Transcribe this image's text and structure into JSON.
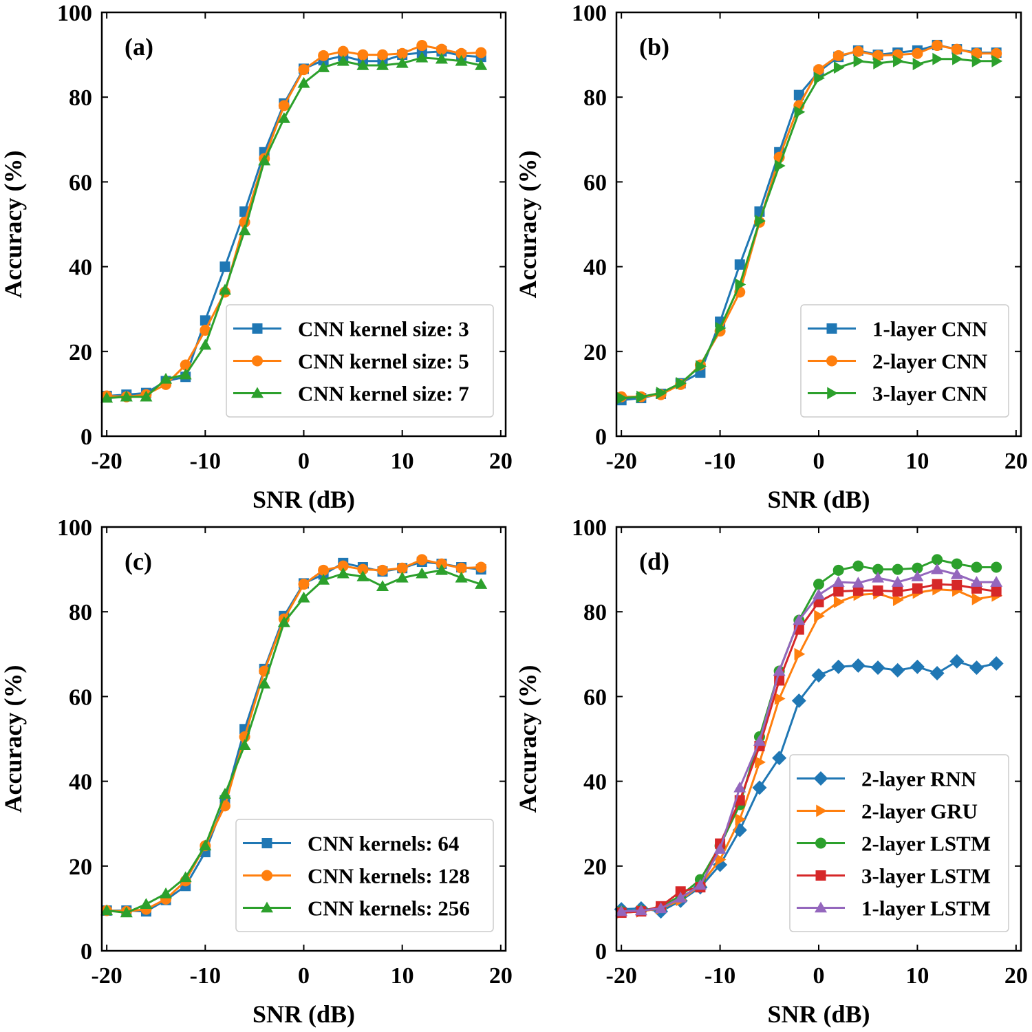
{
  "chart_data": [
    {
      "type": "line",
      "panel_label": "(a)",
      "xlabel": "SNR (dB)",
      "ylabel": "Accuracy (%)",
      "xlim": [
        -20.5,
        20.5
      ],
      "ylim": [
        0,
        100
      ],
      "xticks": [
        -20,
        -10,
        0,
        10,
        20
      ],
      "xtick_labels": [
        "-20",
        "-10",
        "0",
        "10",
        "20"
      ],
      "yticks": [
        0,
        20,
        40,
        60,
        80,
        100
      ],
      "ytick_labels": [
        "0",
        "20",
        "40",
        "60",
        "80",
        "100"
      ],
      "legend_position": "lower-right",
      "x": [
        -20,
        -18,
        -16,
        -14,
        -12,
        -10,
        -8,
        -6,
        -4,
        -2,
        0,
        2,
        4,
        6,
        8,
        10,
        12,
        14,
        16,
        18
      ],
      "series": [
        {
          "name": "CNN kernel size: 3",
          "color": "#1f77b4",
          "marker": "square",
          "values": [
            9.5,
            9.8,
            10.2,
            13.0,
            14.0,
            27.3,
            40.0,
            53.0,
            67.0,
            78.5,
            86.7,
            88.7,
            89.7,
            88.5,
            88.5,
            90.0,
            90.5,
            90.8,
            89.8,
            89.5
          ]
        },
        {
          "name": "CNN kernel size: 5",
          "color": "#ff7f0e",
          "marker": "circle",
          "values": [
            9.5,
            9.3,
            9.8,
            12.2,
            16.8,
            25.0,
            34.0,
            50.5,
            65.5,
            78.0,
            86.5,
            89.8,
            90.8,
            90.0,
            90.0,
            90.3,
            92.2,
            91.3,
            90.3,
            90.5
          ]
        },
        {
          "name": "CNN kernel size: 7",
          "color": "#2ca02c",
          "marker": "triangle-up",
          "values": [
            9.0,
            9.3,
            9.3,
            13.5,
            14.5,
            21.5,
            34.5,
            48.5,
            65.0,
            75.0,
            83.3,
            87.0,
            88.5,
            87.5,
            87.5,
            88.0,
            89.3,
            89.0,
            88.5,
            87.5
          ]
        }
      ]
    },
    {
      "type": "line",
      "panel_label": "(b)",
      "xlabel": "SNR (dB)",
      "ylabel": "Accuracy (%)",
      "xlim": [
        -20.5,
        20.5
      ],
      "ylim": [
        0,
        100
      ],
      "xticks": [
        -20,
        -10,
        0,
        10,
        20
      ],
      "xtick_labels": [
        "-20",
        "-10",
        "0",
        "10",
        "20"
      ],
      "yticks": [
        0,
        20,
        40,
        60,
        80,
        100
      ],
      "ytick_labels": [
        "0",
        "20",
        "40",
        "60",
        "80",
        "100"
      ],
      "legend_position": "lower-right",
      "x": [
        -20,
        -18,
        -16,
        -14,
        -12,
        -10,
        -8,
        -6,
        -4,
        -2,
        0,
        2,
        4,
        6,
        8,
        10,
        12,
        14,
        16,
        18
      ],
      "series": [
        {
          "name": "1-layer CNN",
          "color": "#1f77b4",
          "marker": "square",
          "values": [
            8.5,
            9.0,
            10.0,
            12.5,
            15.0,
            27.0,
            40.5,
            53.0,
            67.0,
            80.5,
            86.0,
            89.5,
            91.0,
            90.0,
            90.5,
            91.0,
            92.3,
            91.3,
            90.5,
            90.5
          ]
        },
        {
          "name": "2-layer CNN",
          "color": "#ff7f0e",
          "marker": "circle",
          "values": [
            9.3,
            9.3,
            9.8,
            12.2,
            16.8,
            24.8,
            34.0,
            50.5,
            65.8,
            78.0,
            86.5,
            89.8,
            90.8,
            89.8,
            90.0,
            90.3,
            92.2,
            91.3,
            90.3,
            90.3
          ]
        },
        {
          "name": "3-layer CNN",
          "color": "#2ca02c",
          "marker": "triangle-right",
          "values": [
            9.0,
            9.3,
            10.2,
            12.5,
            16.5,
            25.5,
            35.8,
            50.8,
            63.8,
            76.5,
            84.5,
            87.0,
            88.5,
            88.0,
            88.5,
            87.8,
            89.0,
            89.0,
            88.5,
            88.5
          ]
        }
      ]
    },
    {
      "type": "line",
      "panel_label": "(c)",
      "xlabel": "SNR (dB)",
      "ylabel": "Accuracy (%)",
      "xlim": [
        -20.5,
        20.5
      ],
      "ylim": [
        0,
        100
      ],
      "xticks": [
        -20,
        -10,
        0,
        10,
        20
      ],
      "xtick_labels": [
        "-20",
        "-10",
        "0",
        "10",
        "20"
      ],
      "yticks": [
        0,
        20,
        40,
        60,
        80,
        100
      ],
      "ytick_labels": [
        "0",
        "20",
        "40",
        "60",
        "80",
        "100"
      ],
      "legend_position": "lower-right",
      "x": [
        -20,
        -18,
        -16,
        -14,
        -12,
        -10,
        -8,
        -6,
        -4,
        -2,
        0,
        2,
        4,
        6,
        8,
        10,
        12,
        14,
        16,
        18
      ],
      "series": [
        {
          "name": "CNN kernels: 64",
          "color": "#1f77b4",
          "marker": "square",
          "values": [
            9.5,
            9.5,
            9.3,
            12.0,
            15.3,
            23.3,
            35.5,
            52.3,
            66.5,
            79.0,
            86.7,
            88.8,
            91.5,
            90.5,
            89.5,
            90.3,
            91.8,
            91.3,
            90.5,
            90.0
          ]
        },
        {
          "name": "CNN kernels: 128",
          "color": "#ff7f0e",
          "marker": "circle",
          "values": [
            9.5,
            9.3,
            9.8,
            12.2,
            16.5,
            24.8,
            34.2,
            50.5,
            66.0,
            78.3,
            86.5,
            89.8,
            90.8,
            90.0,
            89.8,
            90.3,
            92.3,
            91.3,
            90.3,
            90.5
          ]
        },
        {
          "name": "CNN kernels: 256",
          "color": "#2ca02c",
          "marker": "triangle-up",
          "values": [
            9.5,
            9.0,
            11.0,
            13.5,
            17.3,
            24.8,
            37.0,
            48.5,
            63.0,
            77.5,
            83.3,
            87.5,
            89.0,
            88.3,
            86.0,
            88.0,
            89.0,
            89.8,
            88.0,
            86.5
          ]
        }
      ]
    },
    {
      "type": "line",
      "panel_label": "(d)",
      "xlabel": "SNR (dB)",
      "ylabel": "Accuracy (%)",
      "xlim": [
        -20.5,
        20.5
      ],
      "ylim": [
        0,
        100
      ],
      "xticks": [
        -20,
        -10,
        0,
        10,
        20
      ],
      "xtick_labels": [
        "-20",
        "-10",
        "0",
        "10",
        "20"
      ],
      "yticks": [
        0,
        20,
        40,
        60,
        80,
        100
      ],
      "ytick_labels": [
        "0",
        "20",
        "40",
        "60",
        "80",
        "100"
      ],
      "legend_position": "lower-right",
      "x": [
        -20,
        -18,
        -16,
        -14,
        -12,
        -10,
        -8,
        -6,
        -4,
        -2,
        0,
        2,
        4,
        6,
        8,
        10,
        12,
        14,
        16,
        18
      ],
      "series": [
        {
          "name": "2-layer RNN",
          "color": "#1f77b4",
          "marker": "diamond",
          "values": [
            9.8,
            10.0,
            9.3,
            11.8,
            15.0,
            20.3,
            28.5,
            38.5,
            45.5,
            59.0,
            65.0,
            67.0,
            67.3,
            66.8,
            66.2,
            67.0,
            65.5,
            68.3,
            66.8,
            67.8
          ]
        },
        {
          "name": "2-layer GRU",
          "color": "#ff7f0e",
          "marker": "triangle-right",
          "values": [
            9.0,
            9.3,
            10.0,
            12.0,
            15.5,
            21.5,
            31.0,
            44.5,
            59.5,
            70.0,
            79.0,
            82.3,
            84.0,
            84.3,
            82.8,
            84.5,
            85.3,
            85.0,
            83.0,
            83.8
          ]
        },
        {
          "name": "2-layer LSTM",
          "color": "#2ca02c",
          "marker": "circle",
          "values": [
            9.3,
            9.5,
            10.3,
            13.0,
            16.8,
            24.8,
            34.5,
            50.5,
            66.0,
            78.0,
            86.5,
            89.8,
            90.8,
            90.0,
            90.0,
            90.3,
            92.3,
            91.3,
            90.5,
            90.5
          ]
        },
        {
          "name": "3-layer LSTM",
          "color": "#d62728",
          "marker": "square",
          "values": [
            9.0,
            9.3,
            10.5,
            14.0,
            15.0,
            25.3,
            35.5,
            48.3,
            63.8,
            75.8,
            82.3,
            84.8,
            85.0,
            85.0,
            84.8,
            85.5,
            86.5,
            86.3,
            85.5,
            84.8
          ]
        },
        {
          "name": "1-layer LSTM",
          "color": "#9467bd",
          "marker": "triangle-up",
          "values": [
            9.3,
            9.5,
            10.0,
            12.5,
            15.5,
            24.0,
            38.5,
            49.5,
            66.0,
            78.0,
            84.0,
            87.0,
            86.8,
            88.0,
            87.0,
            88.3,
            90.0,
            88.8,
            87.0,
            87.0
          ]
        }
      ]
    }
  ]
}
